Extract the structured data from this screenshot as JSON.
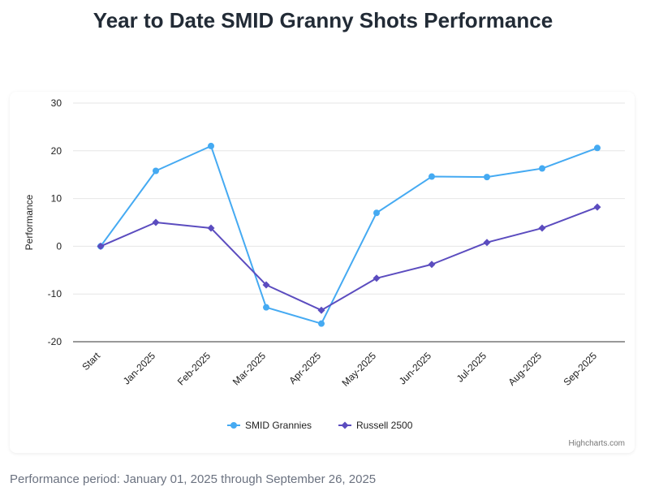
{
  "page": {
    "title": "Year to Date SMID Granny Shots Performance",
    "period_note": "Performance period: January 01, 2025 through September 26, 2025",
    "credits": "Highcharts.com"
  },
  "chart_data": {
    "type": "line",
    "title": "Year to Date SMID Granny Shots Performance",
    "xlabel": "",
    "ylabel": "Performance",
    "categories": [
      "Start",
      "Jan-2025",
      "Feb-2025",
      "Mar-2025",
      "Apr-2025",
      "May-2025",
      "Jun-2025",
      "Jul-2025",
      "Aug-2025",
      "Sep-2025"
    ],
    "ylim": [
      -20,
      30
    ],
    "yticks": [
      "30",
      "20",
      "10",
      "0",
      "-10",
      "-20"
    ],
    "grid": true,
    "legend_position": "bottom-center",
    "series": [
      {
        "name": "SMID Grannies",
        "color": "#45aaf2",
        "marker": "circle",
        "values": [
          0,
          15.8,
          21.0,
          -12.8,
          -16.2,
          7.0,
          14.6,
          14.5,
          16.3,
          20.6
        ]
      },
      {
        "name": "Russell 2500",
        "color": "#5b4cbf",
        "marker": "diamond",
        "values": [
          0,
          5.0,
          3.8,
          -8.1,
          -13.4,
          -6.7,
          -3.8,
          0.8,
          3.8,
          8.2
        ]
      }
    ]
  }
}
